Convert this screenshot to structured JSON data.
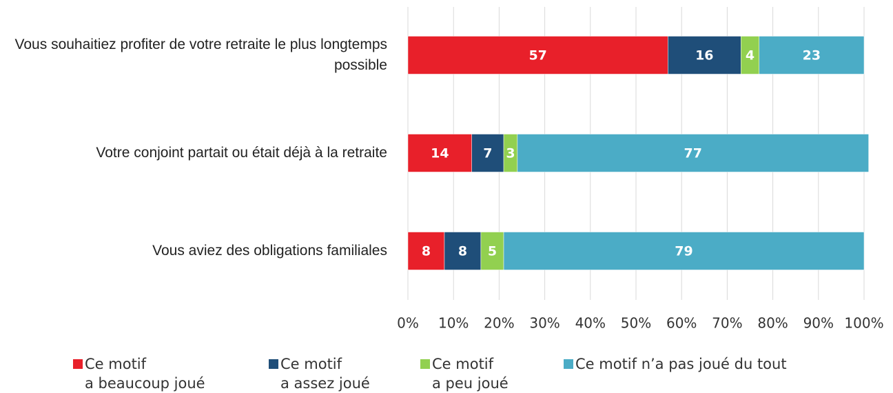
{
  "chart_data": {
    "type": "bar",
    "orientation": "horizontal",
    "stacked": true,
    "categories": [
      "Vous souhaitiez profiter de votre retraite le plus longtemps possible",
      "Votre conjoint partait ou était déjà à la retraite",
      "Vous aviez des obligations familiales"
    ],
    "series": [
      {
        "name": "Ce motif\na beaucoup joué",
        "color": "#e8202a",
        "values": [
          57,
          14,
          8
        ]
      },
      {
        "name": "Ce motif\na assez joué",
        "color": "#1f4e79",
        "values": [
          16,
          7,
          8
        ]
      },
      {
        "name": "Ce motif\na peu joué",
        "color": "#92d050",
        "values": [
          4,
          3,
          5
        ]
      },
      {
        "name": "Ce motif n’a pas joué du tout",
        "color": "#4bacc6",
        "values": [
          23,
          77,
          79
        ]
      }
    ],
    "xlim": [
      0,
      100
    ],
    "xticks": [
      {
        "value": 0,
        "label": "0%"
      },
      {
        "value": 10,
        "label": "10%"
      },
      {
        "value": 20,
        "label": "20%"
      },
      {
        "value": 30,
        "label": "30%"
      },
      {
        "value": 40,
        "label": "40%"
      },
      {
        "value": 50,
        "label": "50%"
      },
      {
        "value": 60,
        "label": "60%"
      },
      {
        "value": 70,
        "label": "70%"
      },
      {
        "value": 80,
        "label": "80%"
      },
      {
        "value": 90,
        "label": "90%"
      },
      {
        "value": 100,
        "label": "100%"
      }
    ],
    "grid": true,
    "legend": "bottom"
  }
}
